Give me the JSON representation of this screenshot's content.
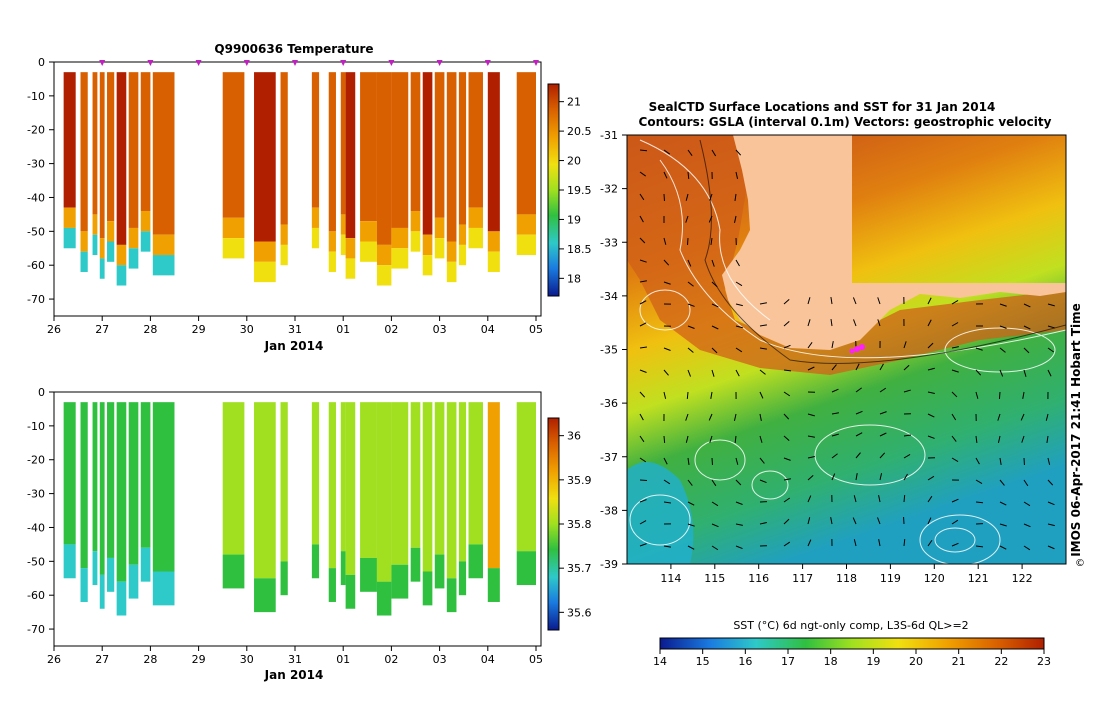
{
  "chart_data": [
    {
      "type": "heatmap",
      "title": "Q9900636  Temperature",
      "xlabel": "Jan 2014",
      "ylabel": "",
      "x_tick_labels": [
        "26",
        "27",
        "28",
        "29",
        "30",
        "31",
        "01",
        "02",
        "03",
        "04",
        "05"
      ],
      "y_ticks": [
        0,
        -10,
        -20,
        -30,
        -40,
        -50,
        -60,
        -70
      ],
      "ylim": [
        -75,
        0
      ],
      "colorbar_ticks": [
        "18",
        "18.5",
        "19",
        "19.5",
        "20",
        "20.5",
        "21"
      ],
      "colorbar_range": [
        17.7,
        21.3
      ],
      "colors": [
        "#0a1a8f",
        "#1a7be0",
        "#2ec9c9",
        "#30c040",
        "#a0e020",
        "#f0e010",
        "#f0a000",
        "#d96000",
        "#b02000"
      ],
      "profile_markers": 10
    },
    {
      "type": "heatmap",
      "title": "",
      "xlabel": "Jan 2014",
      "ylabel": "",
      "x_tick_labels": [
        "26",
        "27",
        "28",
        "29",
        "30",
        "31",
        "01",
        "02",
        "03",
        "04",
        "05"
      ],
      "y_ticks": [
        0,
        -10,
        -20,
        -30,
        -40,
        -50,
        -60,
        -70
      ],
      "ylim": [
        -75,
        0
      ],
      "colorbar_ticks": [
        "35.6",
        "35.7",
        "35.8",
        "35.9",
        "36"
      ],
      "colorbar_range": [
        35.56,
        36.04
      ],
      "colors": [
        "#0a1a8f",
        "#1a7be0",
        "#2ec9c9",
        "#30c040",
        "#a0e020",
        "#f0e010",
        "#f0a000",
        "#d96000",
        "#b02000"
      ]
    },
    {
      "type": "heatmap",
      "title": "SealCTD Surface Locations and SST for 31 Jan 2014",
      "subtitle": "Contours: GSLA (interval 0.1m) Vectors: geostrophic velocity",
      "x_tick_labels": [
        "114",
        "115",
        "116",
        "117",
        "118",
        "119",
        "120",
        "121",
        "122"
      ],
      "y_tick_labels": [
        "-31",
        "-32",
        "-33",
        "-34",
        "-35",
        "-36",
        "-37",
        "-38",
        "-39"
      ],
      "xlim": [
        113,
        123
      ],
      "ylim": [
        -39,
        -31
      ],
      "side_label": "IMOS 06-Apr-2017 21:41 Hobart Time",
      "colorbar_title": "SST (°C) 6d ngt-only comp, L3S-6d QL>=2",
      "colorbar_ticks": [
        "14",
        "15",
        "16",
        "17",
        "18",
        "19",
        "20",
        "21",
        "22",
        "23"
      ],
      "colorbar_range": [
        14,
        23
      ],
      "land_color": "#f9c49a"
    }
  ]
}
